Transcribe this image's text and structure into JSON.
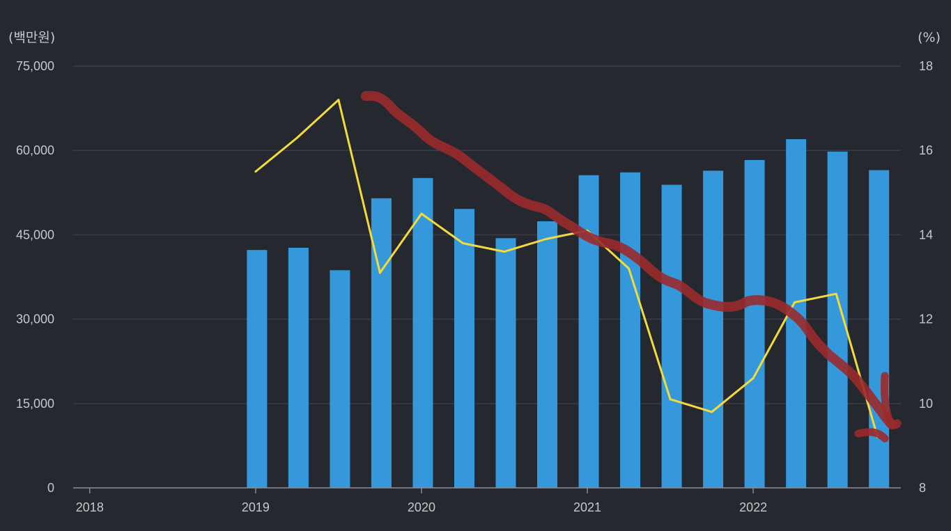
{
  "chart_data": {
    "type": "bar",
    "left_unit": "(백만원)",
    "right_unit": "(%)",
    "x_ticks": [
      "2018",
      "2019",
      "2020",
      "2021",
      "2022"
    ],
    "left_axis": {
      "range": [
        0,
        75000
      ],
      "ticks": [
        {
          "value": 0,
          "label": "0"
        },
        {
          "value": 15000,
          "label": "15,000"
        },
        {
          "value": 30000,
          "label": "30,000"
        },
        {
          "value": 45000,
          "label": "45,000"
        },
        {
          "value": 60000,
          "label": "60,000"
        },
        {
          "value": 75000,
          "label": "75,000"
        }
      ]
    },
    "right_axis": {
      "range": [
        8,
        18
      ],
      "ticks": [
        {
          "value": 8,
          "label": "8"
        },
        {
          "value": 10,
          "label": "10"
        },
        {
          "value": 12,
          "label": "12"
        },
        {
          "value": 14,
          "label": "14"
        },
        {
          "value": 16,
          "label": "16"
        },
        {
          "value": 18,
          "label": "18"
        }
      ]
    },
    "x_domain": [
      2017.9,
      2022.89
    ],
    "grid": true,
    "series": [
      {
        "type": "bar",
        "axis": "left",
        "color": "#3598db",
        "x": [
          2019.0,
          2019.25,
          2019.5,
          2019.75,
          2020.0,
          2020.25,
          2020.5,
          2020.75,
          2021.0,
          2021.25,
          2021.5,
          2021.75,
          2022.0,
          2022.25,
          2022.5,
          2022.75
        ],
        "values": [
          42300,
          42700,
          38700,
          51500,
          55100,
          49600,
          44400,
          47400,
          55600,
          56100,
          53900,
          56400,
          58300,
          62000,
          59800,
          56500
        ]
      },
      {
        "type": "line",
        "axis": "right",
        "color": "#f4db3c",
        "x": [
          2019.0,
          2019.25,
          2019.5,
          2019.75,
          2020.0,
          2020.25,
          2020.5,
          2020.75,
          2021.0,
          2021.25,
          2021.5,
          2021.75,
          2022.0,
          2022.25,
          2022.5,
          2022.75
        ],
        "values": [
          15.5,
          16.3,
          17.2,
          13.1,
          14.5,
          13.8,
          13.6,
          13.9,
          14.1,
          13.2,
          10.1,
          9.8,
          10.6,
          12.4,
          12.6,
          9.2
        ]
      }
    ],
    "annotation_color": "#9a2a2c"
  }
}
